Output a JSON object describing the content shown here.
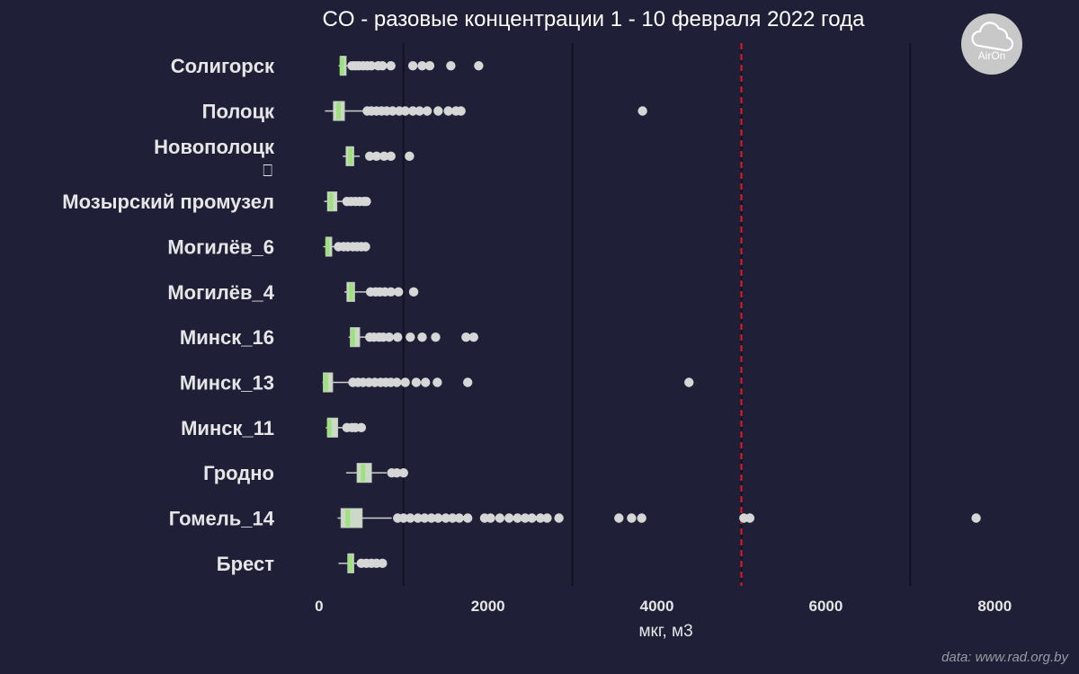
{
  "chart_data": {
    "type": "boxplot",
    "orientation": "horizontal",
    "title": "CO - разовые концентрации 1 - 10 февраля 2022 года",
    "xlabel": "мкг, м3",
    "xlim": [
      -350,
      8700
    ],
    "xticks": [
      "0",
      "2000",
      "4000",
      "6000",
      "8000"
    ],
    "xtick_values": [
      0,
      2000,
      4000,
      6000,
      8000
    ],
    "minor_gridlines": [
      1000,
      3000,
      5000,
      7000
    ],
    "limit_line": {
      "value": 5000,
      "color": "#e11a1a",
      "style": "dashed"
    },
    "box_fill": "#cdd9c8",
    "median_color": "#9de27f",
    "outlier_color": "#d6d6d6",
    "series": [
      {
        "name": "Солигорск",
        "box": {
          "whisker_low": 230,
          "q1": 250,
          "median": 270,
          "q3": 320,
          "whisker_high": 340
        },
        "outliers": [
          390,
          430,
          470,
          520,
          570,
          620,
          700,
          750,
          850,
          1110,
          1220,
          1310,
          1560,
          1890
        ]
      },
      {
        "name": "Полоцк",
        "box": {
          "whisker_low": 70,
          "q1": 170,
          "median": 230,
          "q3": 300,
          "whisker_high": 530
        },
        "outliers": [
          570,
          620,
          680,
          740,
          800,
          870,
          950,
          1020,
          1110,
          1190,
          1280,
          1410,
          1530,
          1620,
          1680,
          3830
        ]
      },
      {
        "name": "Новополоцк",
        "sublabel": "⎕",
        "box": {
          "whisker_low": 280,
          "q1": 320,
          "median": 370,
          "q3": 410,
          "whisker_high": 480
        },
        "outliers": [
          600,
          680,
          770,
          850,
          1070
        ]
      },
      {
        "name": "Мозырский промузел",
        "box": {
          "whisker_low": 60,
          "q1": 100,
          "median": 140,
          "q3": 210,
          "whisker_high": 280
        },
        "outliers": [
          330,
          380,
          430,
          480,
          530,
          560
        ]
      },
      {
        "name": "Могилёв_6",
        "box": {
          "whisker_low": 50,
          "q1": 80,
          "median": 100,
          "q3": 150,
          "whisker_high": 190
        },
        "outliers": [
          230,
          290,
          340,
          400,
          450,
          500,
          550
        ]
      },
      {
        "name": "Могилёв_4",
        "box": {
          "whisker_low": 300,
          "q1": 330,
          "median": 380,
          "q3": 420,
          "whisker_high": 560
        },
        "outliers": [
          610,
          670,
          720,
          780,
          850,
          940,
          1120
        ]
      },
      {
        "name": "Минск_16",
        "box": {
          "whisker_low": 350,
          "q1": 370,
          "median": 400,
          "q3": 480,
          "whisker_high": 550
        },
        "outliers": [
          600,
          650,
          710,
          760,
          830,
          930,
          1080,
          1220,
          1380,
          1740,
          1830
        ]
      },
      {
        "name": "Минск_13",
        "box": {
          "whisker_low": 40,
          "q1": 50,
          "median": 80,
          "q3": 160,
          "whisker_high": 370
        },
        "outliers": [
          400,
          460,
          520,
          590,
          660,
          730,
          790,
          850,
          920,
          1020,
          1150,
          1260,
          1400,
          1760,
          4380
        ]
      },
      {
        "name": "Минск_11",
        "box": {
          "whisker_low": 80,
          "q1": 100,
          "median": 120,
          "q3": 220,
          "whisker_high": 290
        },
        "outliers": [
          330,
          390,
          430,
          500
        ]
      },
      {
        "name": "Гродно",
        "box": {
          "whisker_low": 320,
          "q1": 450,
          "median": 520,
          "q3": 620,
          "whisker_high": 800
        },
        "outliers": [
          860,
          920,
          1000
        ]
      },
      {
        "name": "Гомель_14",
        "box": {
          "whisker_low": 220,
          "q1": 260,
          "median": 340,
          "q3": 510,
          "whisker_high": 860
        },
        "outliers": [
          930,
          1000,
          1080,
          1170,
          1250,
          1330,
          1410,
          1500,
          1580,
          1660,
          1760,
          1960,
          2030,
          2140,
          2250,
          2350,
          2440,
          2520,
          2620,
          2700,
          2840,
          3550,
          3700,
          3820,
          5030,
          5100,
          7780
        ]
      },
      {
        "name": "Брест",
        "box": {
          "whisker_low": 230,
          "q1": 340,
          "median": 370,
          "q3": 410,
          "whisker_high": 450
        },
        "outliers": [
          500,
          560,
          620,
          680,
          750
        ]
      }
    ]
  },
  "logo": {
    "label": "AirOn",
    "icon": "cloud-icon"
  },
  "source_note": "data: www.rad.org.by"
}
